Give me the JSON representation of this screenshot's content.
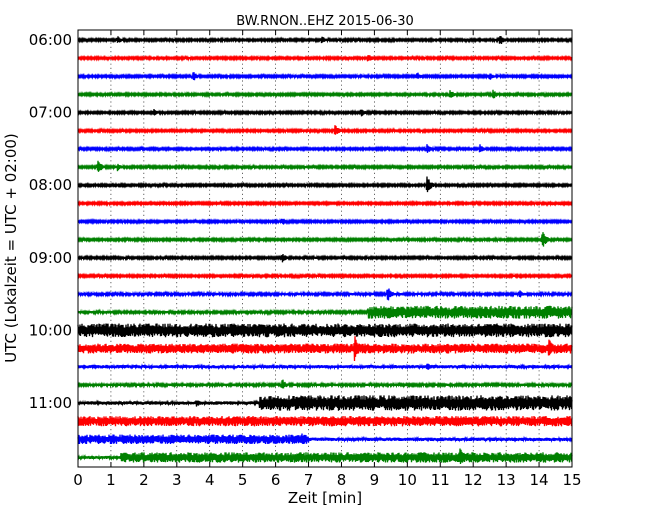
{
  "chart_data": {
    "type": "line",
    "title": "BW.RNON..EHZ 2015-06-30",
    "xlabel": "Zeit  [min]",
    "ylabel": "UTC (Lokalzeit = UTC + 02:00)",
    "xlim": [
      0,
      15
    ],
    "x_ticks": [
      0,
      1,
      2,
      3,
      4,
      5,
      6,
      7,
      8,
      9,
      10,
      11,
      12,
      13,
      14,
      15
    ],
    "x_tick_labels": [
      "0",
      "1",
      "2",
      "3",
      "4",
      "5",
      "6",
      "7",
      "8",
      "9",
      "10",
      "11",
      "12",
      "13",
      "14",
      "15"
    ],
    "y_tick_labels": [
      "06:00",
      "07:00",
      "08:00",
      "09:00",
      "10:00",
      "11:00"
    ],
    "y_tick_rows": [
      0,
      4,
      8,
      12,
      16,
      20
    ],
    "grid": "vertical dotted at each minute",
    "colors": [
      "#000000",
      "#ff0000",
      "#0000ff",
      "#008000"
    ],
    "row_minutes": 15,
    "series": [
      {
        "start": "06:00",
        "noise": 0.5
      },
      {
        "start": "06:15",
        "noise": 0.5
      },
      {
        "start": "06:30",
        "noise": 0.5
      },
      {
        "start": "06:45",
        "noise": 0.5
      },
      {
        "start": "07:00",
        "noise": 0.5
      },
      {
        "start": "07:15",
        "noise": 0.5
      },
      {
        "start": "07:30",
        "noise": 0.5
      },
      {
        "start": "07:45",
        "noise": 0.5
      },
      {
        "start": "08:00",
        "noise": 0.5
      },
      {
        "start": "08:15",
        "noise": 0.5
      },
      {
        "start": "08:30",
        "noise": 0.5
      },
      {
        "start": "08:45",
        "noise": 0.5
      },
      {
        "start": "09:00",
        "noise": 0.5
      },
      {
        "start": "09:15",
        "noise": 0.5
      },
      {
        "start": "09:30",
        "noise": 0.6
      },
      {
        "start": "09:45",
        "noise": 0.6,
        "segments": [
          {
            "from": 8.8,
            "to": 15,
            "noise": 3.0
          }
        ]
      },
      {
        "start": "10:00",
        "noise": 3.2
      },
      {
        "start": "10:15",
        "noise": 2.3
      },
      {
        "start": "10:30",
        "noise": 0.8
      },
      {
        "start": "10:45",
        "noise": 0.6
      },
      {
        "start": "11:00",
        "noise": 0.8,
        "segments": [
          {
            "from": 5.5,
            "to": 15,
            "noise": 3.6
          }
        ]
      },
      {
        "start": "11:15",
        "noise": 2.4
      },
      {
        "start": "11:30",
        "noise": 0.8,
        "segments": [
          {
            "from": 0,
            "to": 7.0,
            "noise": 2.2
          }
        ]
      },
      {
        "start": "11:45",
        "noise": 0.7,
        "segments": [
          {
            "from": 1.3,
            "to": 15,
            "noise": 2.4
          }
        ]
      }
    ],
    "events": [
      {
        "row": 0,
        "t": 1.2,
        "amp": 4
      },
      {
        "row": 0,
        "t": 7.4,
        "amp": 4
      },
      {
        "row": 0,
        "t": 12.8,
        "amp": 6
      },
      {
        "row": 1,
        "t": 8.8,
        "amp": 5
      },
      {
        "row": 2,
        "t": 3.5,
        "amp": 5
      },
      {
        "row": 2,
        "t": 10.3,
        "amp": 4
      },
      {
        "row": 2,
        "t": 12.5,
        "amp": 4
      },
      {
        "row": 3,
        "t": 11.3,
        "amp": 5
      },
      {
        "row": 3,
        "t": 12.6,
        "amp": 5
      },
      {
        "row": 4,
        "t": 2.3,
        "amp": 4
      },
      {
        "row": 4,
        "t": 8.6,
        "amp": 4
      },
      {
        "row": 5,
        "t": 7.8,
        "amp": 6
      },
      {
        "row": 6,
        "t": 10.6,
        "amp": 5
      },
      {
        "row": 6,
        "t": 12.2,
        "amp": 5
      },
      {
        "row": 7,
        "t": 0.6,
        "amp": 7
      },
      {
        "row": 7,
        "t": 1.2,
        "amp": 4
      },
      {
        "row": 8,
        "t": 10.6,
        "amp": 9
      },
      {
        "row": 10,
        "t": 6.2,
        "amp": 4
      },
      {
        "row": 11,
        "t": 14.1,
        "amp": 9
      },
      {
        "row": 12,
        "t": 6.2,
        "amp": 5
      },
      {
        "row": 14,
        "t": 9.4,
        "amp": 8
      },
      {
        "row": 14,
        "t": 13.4,
        "amp": 4
      },
      {
        "row": 16,
        "t": 8.6,
        "amp": 6
      },
      {
        "row": 16,
        "t": 14.0,
        "amp": 5
      },
      {
        "row": 17,
        "t": 8.4,
        "amp": 14
      },
      {
        "row": 17,
        "t": 14.3,
        "amp": 10
      },
      {
        "row": 18,
        "t": 10.6,
        "amp": 4
      },
      {
        "row": 19,
        "t": 6.2,
        "amp": 6
      },
      {
        "row": 20,
        "t": 3.6,
        "amp": 4
      },
      {
        "row": 22,
        "t": 6.8,
        "amp": 7
      },
      {
        "row": 23,
        "t": 11.6,
        "amp": 9
      },
      {
        "row": 23,
        "t": 12.4,
        "amp": 6
      }
    ]
  }
}
